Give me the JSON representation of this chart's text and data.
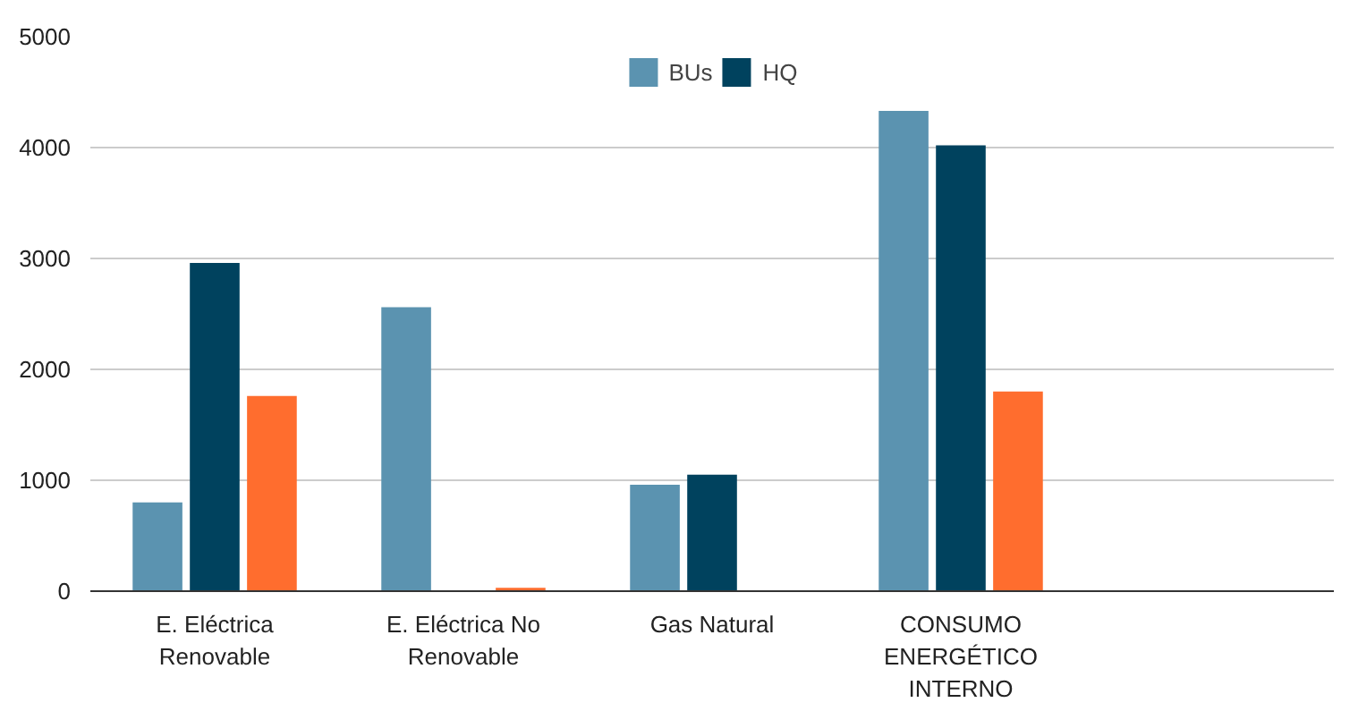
{
  "chart_data": {
    "type": "bar",
    "categories": [
      "E. Eléctrica\nRenovable",
      "E. Eléctrica No\nRenovable",
      "Gas Natural",
      "CONSUMO\nENERGÉTICO\nINTERNO",
      null
    ],
    "series": [
      {
        "name": "BUs",
        "color": "#5b93b0",
        "values": [
          800,
          2560,
          960,
          4330,
          null
        ]
      },
      {
        "name": "HQ",
        "color": "#00425e",
        "values": [
          2960,
          null,
          1050,
          4020,
          null
        ]
      },
      {
        "color": "#ff6d2e",
        "values": [
          1760,
          30,
          null,
          1800,
          null
        ]
      }
    ],
    "ylim": [
      0,
      5000
    ],
    "yticks": [
      0,
      1000,
      2000,
      3000,
      4000,
      5000
    ],
    "grid": "y",
    "legend": "top"
  }
}
